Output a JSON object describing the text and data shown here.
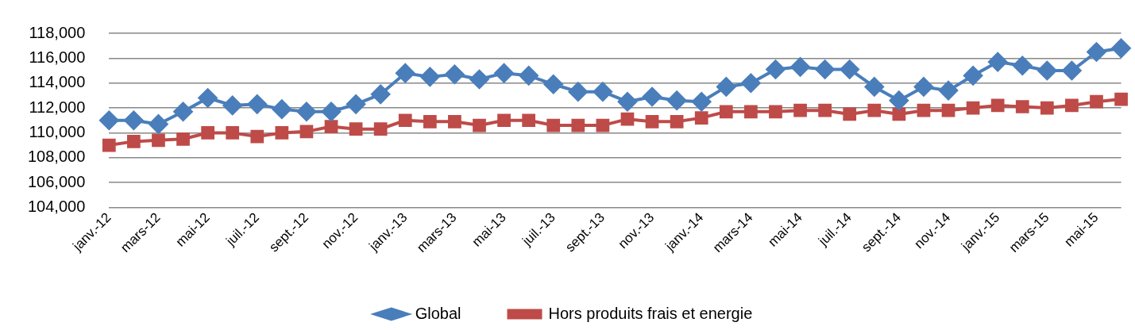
{
  "chart_data": {
    "type": "line",
    "categories": [
      "janv.-12",
      null,
      "mars-12",
      null,
      "mai-12",
      null,
      "juil.-12",
      null,
      "sept.-12",
      null,
      "nov.-12",
      null,
      "janv.-13",
      null,
      "mars-13",
      null,
      "mai-13",
      null,
      "juil.-13",
      null,
      "sept.-13",
      null,
      "nov.-13",
      null,
      "janv.-14",
      null,
      "mars-14",
      null,
      "mai-14",
      null,
      "juil.-14",
      null,
      "sept.-14",
      null,
      "nov.-14",
      null,
      "janv.-15",
      null,
      "mars-15",
      null,
      "mai-15",
      null
    ],
    "series": [
      {
        "name": "Global",
        "color": "#4a7ebb",
        "marker": "diamond",
        "values": [
          111000,
          111000,
          110700,
          111700,
          112800,
          112200,
          112300,
          111900,
          111700,
          111700,
          112300,
          113100,
          114800,
          114500,
          114700,
          114300,
          114800,
          114600,
          113900,
          113300,
          113300,
          112500,
          112900,
          112600,
          112500,
          113700,
          114000,
          115100,
          115300,
          115100,
          115100,
          113700,
          112600,
          113700,
          113400,
          114600,
          115700,
          115400,
          115000,
          115000,
          116500,
          116800
        ]
      },
      {
        "name": "Hors produits frais et energie",
        "color": "#be4b48",
        "marker": "square",
        "values": [
          109000,
          109300,
          109400,
          109500,
          110000,
          110000,
          109700,
          110000,
          110100,
          110500,
          110300,
          110300,
          111000,
          110900,
          110900,
          110600,
          111000,
          111000,
          110600,
          110600,
          110600,
          111100,
          110900,
          110900,
          111200,
          111700,
          111700,
          111700,
          111800,
          111800,
          111500,
          111800,
          111500,
          111800,
          111800,
          112000,
          112200,
          112100,
          112000,
          112200,
          112500,
          112700
        ]
      }
    ],
    "ylim": [
      104000,
      118000
    ],
    "yticks": [
      {
        "value": 104000,
        "label": "104,000"
      },
      {
        "value": 106000,
        "label": "106,000"
      },
      {
        "value": 108000,
        "label": "108,000"
      },
      {
        "value": 110000,
        "label": "110,000"
      },
      {
        "value": 112000,
        "label": "112,000"
      },
      {
        "value": 114000,
        "label": "114,000"
      },
      {
        "value": 116000,
        "label": "116,000"
      },
      {
        "value": 118000,
        "label": "118,000"
      }
    ],
    "grid": "y",
    "legend": "bottom",
    "line_style": "solid"
  }
}
